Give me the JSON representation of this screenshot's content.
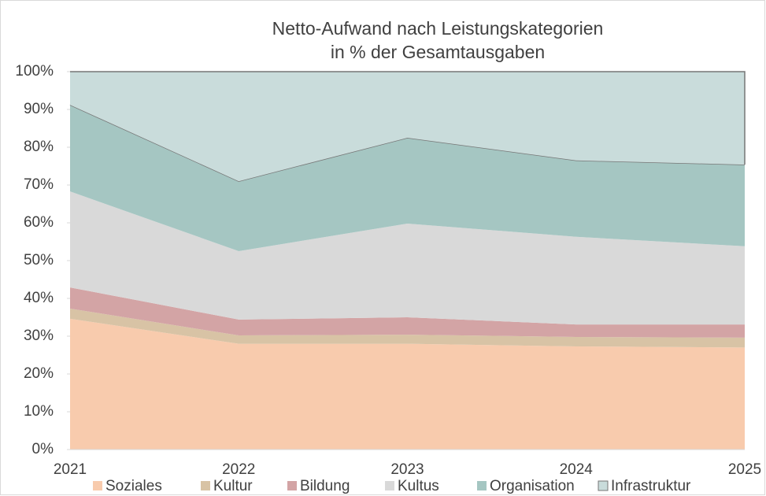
{
  "chart_data": {
    "type": "stacked_area_100",
    "title": "Netto-Aufwand nach Leistungskategorien",
    "subtitle": "in % der Gesamtausgaben",
    "categories": [
      "2021",
      "2022",
      "2023",
      "2024",
      "2025"
    ],
    "series": [
      {
        "name": "Soziales",
        "color": "#f8cbad",
        "values": [
          34.6,
          28,
          28,
          27.3,
          27
        ]
      },
      {
        "name": "Kultur",
        "color": "#d8c3a5",
        "values": [
          2.7,
          2.2,
          2.4,
          2.5,
          2.6
        ]
      },
      {
        "name": "Bildung",
        "color": "#d3a4a5",
        "values": [
          5.6,
          4.2,
          4.6,
          3.3,
          3.5
        ]
      },
      {
        "name": "Kultus",
        "color": "#d9d9d9",
        "values": [
          25.4,
          18.1,
          24.8,
          23.2,
          20.7
        ]
      },
      {
        "name": "Organisation",
        "color": "#a5c6c2",
        "values": [
          22.9,
          18.5,
          22.7,
          20.2,
          21.6
        ]
      },
      {
        "name": "Infrastruktur",
        "color": "#c9dcdb",
        "values": [
          8.8,
          29,
          17.5,
          23.5,
          24.6
        ]
      }
    ],
    "ylim": [
      0,
      100
    ],
    "yticks": [
      {
        "value": 0,
        "label": "0%"
      },
      {
        "value": 10,
        "label": "10%"
      },
      {
        "value": 20,
        "label": "20%"
      },
      {
        "value": 30,
        "label": "30%"
      },
      {
        "value": 40,
        "label": "40%"
      },
      {
        "value": 50,
        "label": "50%"
      },
      {
        "value": 60,
        "label": "60%"
      },
      {
        "value": 70,
        "label": "70%"
      },
      {
        "value": 80,
        "label": "80%"
      },
      {
        "value": 90,
        "label": "90%"
      },
      {
        "value": 100,
        "label": "100%"
      }
    ],
    "legend": "bottom"
  }
}
